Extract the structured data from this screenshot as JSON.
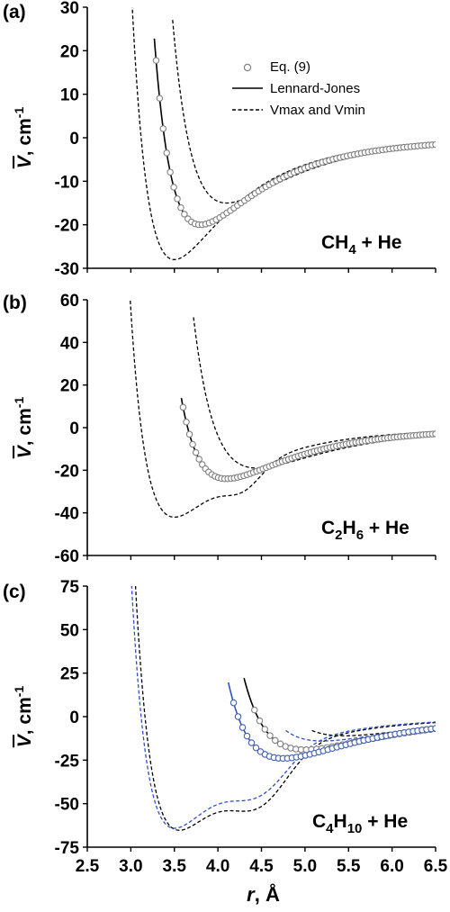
{
  "chart_data": [
    {
      "type": "line",
      "panel_label": "(a)",
      "ylabel": "V, cm-1",
      "annotation": "CH4 + He",
      "annotation_parts": {
        "base": "CH",
        "sub": "4",
        "rest": " + He"
      },
      "xlim": [
        2.5,
        6.5
      ],
      "ylim": [
        -30,
        30
      ],
      "ytick_labels": [
        "30",
        "20",
        "10",
        "0",
        "-10",
        "-20",
        "-30"
      ],
      "legend": {
        "placement": "top-right",
        "entries": [
          {
            "label": "Eq. (9)",
            "style": "open-circles"
          },
          {
            "label": "Lennard-Jones",
            "style": "solid"
          },
          {
            "label": "Vmax and Vmin",
            "style": "dashed"
          }
        ]
      },
      "series": [
        {
          "name": "Eq. (9)",
          "style": "circles",
          "color": "#808080",
          "r_min": 3.29,
          "r_max": 6.5,
          "points": 80,
          "model": {
            "kind": "lj",
            "eps": 20,
            "rm": 3.8
          }
        },
        {
          "name": "Lennard-Jones",
          "style": "solid",
          "color": "#000000",
          "r_min": 3.27,
          "r_max": 6.5,
          "model": {
            "kind": "lj",
            "eps": 20,
            "rm": 3.8
          }
        },
        {
          "name": "Vmax",
          "style": "dashed",
          "color": "#000000",
          "r_min": 3.48,
          "r_max": 6.5,
          "model": {
            "kind": "lj",
            "eps": 15,
            "rm": 4.1
          }
        },
        {
          "name": "Vmin",
          "style": "dashed",
          "color": "#000000",
          "r_min": 2.88,
          "r_max": 6.5,
          "model": {
            "kind": "lj",
            "eps": 28,
            "rm": 3.5,
            "bump": {
              "amp": 0,
              "center": 0,
              "width": 1
            }
          }
        }
      ]
    },
    {
      "type": "line",
      "panel_label": "(b)",
      "ylabel": "V, cm-1",
      "annotation": "C2H6 + He",
      "annotation_parts": {
        "base": "C",
        "sub": "2",
        "rest": "H",
        "sub2": "6",
        "rest2": " + He"
      },
      "xlim": [
        2.5,
        6.5
      ],
      "ylim": [
        -60,
        60
      ],
      "ytick_labels": [
        "60",
        "40",
        "20",
        "0",
        "-20",
        "-40",
        "-60"
      ],
      "series": [
        {
          "name": "Eq. (9)",
          "style": "circles",
          "color": "#808080",
          "r_min": 3.6,
          "r_max": 6.5,
          "points": 80,
          "model": {
            "kind": "lj",
            "eps": 24,
            "rm": 4.1
          }
        },
        {
          "name": "Lennard-Jones",
          "style": "solid",
          "color": "#000000",
          "r_min": 3.58,
          "r_max": 6.5,
          "model": {
            "kind": "lj",
            "eps": 24,
            "rm": 4.1
          }
        },
        {
          "name": "Vmax",
          "style": "dashed",
          "color": "#000000",
          "r_min": 3.72,
          "r_max": 6.5,
          "model": {
            "kind": "lj",
            "eps": 19,
            "rm": 4.45
          }
        },
        {
          "name": "Vmin",
          "style": "dashed",
          "color": "#000000",
          "r_min": 2.92,
          "r_max": 6.5,
          "model": {
            "kind": "lj",
            "eps": 42,
            "rm": 3.5,
            "bump": {
              "amp": 9,
              "center": 4.3,
              "width": 0.3
            }
          }
        }
      ]
    },
    {
      "type": "line",
      "panel_label": "(c)",
      "ylabel": "V, cm-1",
      "annotation": "C4H10 + He",
      "annotation_parts": {
        "base": "C",
        "sub": "4",
        "rest": "H",
        "sub2": "10",
        "rest2": " + He"
      },
      "xlabel": "r, Å",
      "xlim": [
        2.5,
        6.5
      ],
      "ylim": [
        -75,
        75
      ],
      "xtick_labels": [
        "2.5",
        "3.0",
        "3.5",
        "4.0",
        "4.5",
        "5.0",
        "5.5",
        "6.0",
        "6.5"
      ],
      "ytick_labels": [
        "75",
        "50",
        "25",
        "0",
        "-25",
        "-50",
        "-75"
      ],
      "series": [
        {
          "name": "Eq. (9) black",
          "style": "circles",
          "color": "#808080",
          "r_min": 4.42,
          "r_max": 6.5,
          "points": 36,
          "model": {
            "kind": "lj",
            "eps": 19,
            "rm": 5.0
          }
        },
        {
          "name": "Lennard-Jones black",
          "style": "solid",
          "color": "#000000",
          "r_min": 4.3,
          "r_max": 6.5,
          "model": {
            "kind": "lj",
            "eps": 19,
            "rm": 5.0
          }
        },
        {
          "name": "Vmax black",
          "style": "dashed",
          "color": "#000000",
          "r_min": 5.08,
          "r_max": 6.5,
          "model": {
            "kind": "lj",
            "eps": 11,
            "rm": 5.45
          }
        },
        {
          "name": "Vmin black",
          "style": "dashed",
          "color": "#000000",
          "r_min": 3.0,
          "r_max": 6.5,
          "model": {
            "kind": "lj",
            "eps": 65,
            "rm": 3.55,
            "bump": {
              "amp": 24,
              "center": 4.5,
              "width": 0.45
            }
          }
        },
        {
          "name": "Eq. (9) blue",
          "style": "circles",
          "color": "#4060b0",
          "r_min": 4.18,
          "r_max": 6.5,
          "points": 46,
          "model": {
            "kind": "lj",
            "eps": 24,
            "rm": 4.75
          }
        },
        {
          "name": "Lennard-Jones blue",
          "style": "solid",
          "color": "#3050c8",
          "r_min": 4.12,
          "r_max": 6.5,
          "model": {
            "kind": "lj",
            "eps": 24,
            "rm": 4.75
          }
        },
        {
          "name": "Vmax blue",
          "style": "dashed",
          "color": "#3050c8",
          "r_min": 4.78,
          "r_max": 6.5,
          "model": {
            "kind": "lj",
            "eps": 14,
            "rm": 5.2
          }
        },
        {
          "name": "Vmin blue",
          "style": "dashed",
          "color": "#3050c8",
          "r_min": 2.95,
          "r_max": 6.5,
          "model": {
            "kind": "lj",
            "eps": 64,
            "rm": 3.5,
            "bump": {
              "amp": 20,
              "center": 4.5,
              "width": 0.45
            }
          }
        }
      ]
    }
  ]
}
